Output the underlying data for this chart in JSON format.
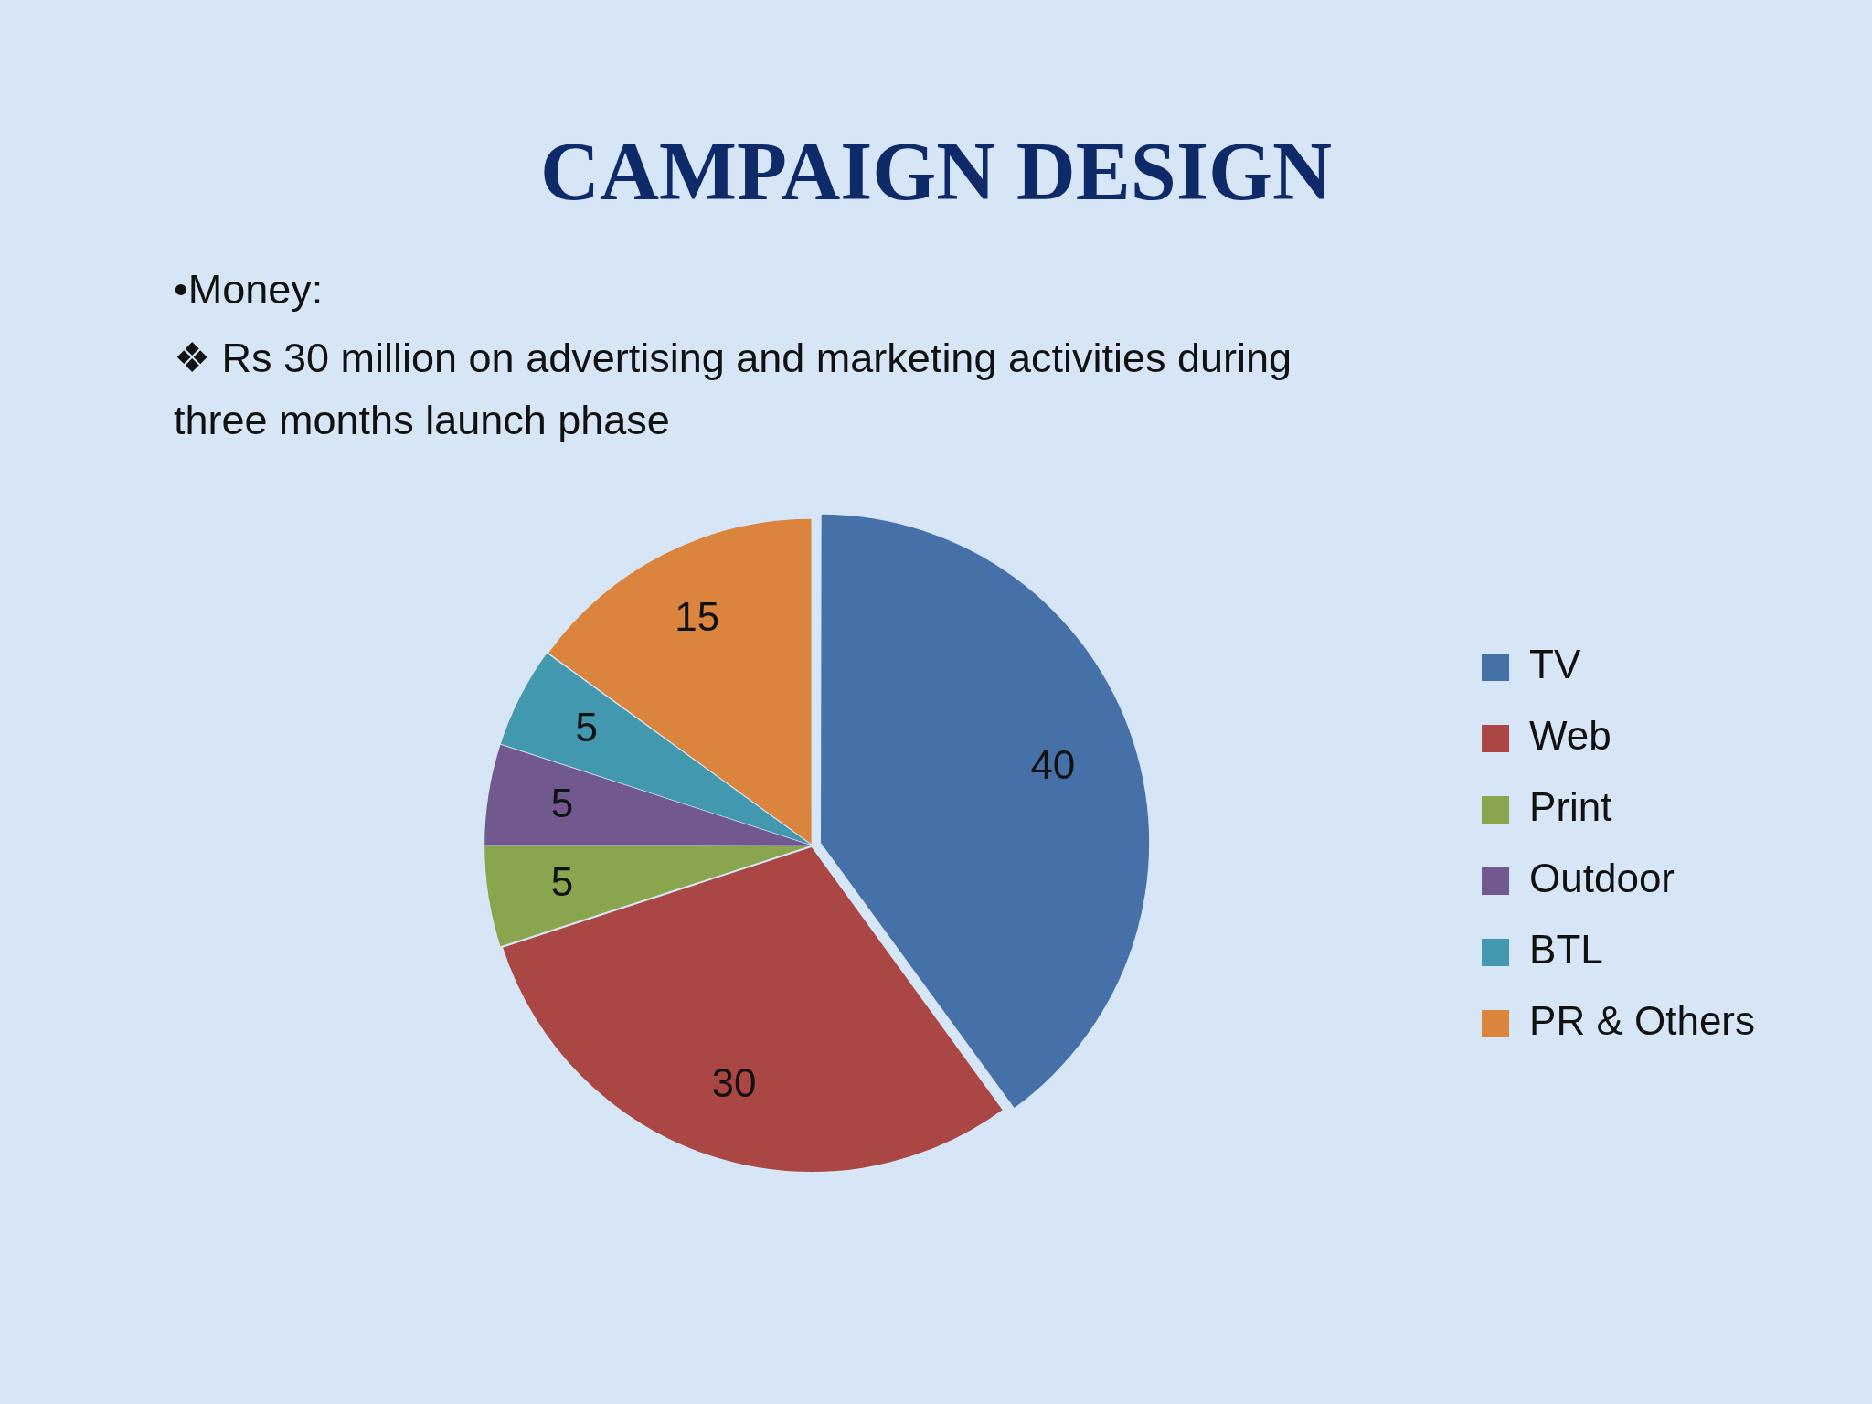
{
  "chart_data": {
    "type": "pie",
    "title": "CAMPAIGN DESIGN",
    "subtitle": "•Money:",
    "annotations": [
      "❖ Rs 30 million on advertising and marketing activities during three months launch phase"
    ],
    "categories": [
      "TV",
      "Web",
      "Print",
      "Outdoor",
      "BTL",
      "PR & Others"
    ],
    "values": [
      40,
      30,
      5,
      5,
      5,
      15
    ],
    "colors": [
      "#4571a8",
      "#aa4644",
      "#89a54e",
      "#71588f",
      "#4198af",
      "#db843d"
    ],
    "data_labels": true,
    "legend": "right"
  }
}
